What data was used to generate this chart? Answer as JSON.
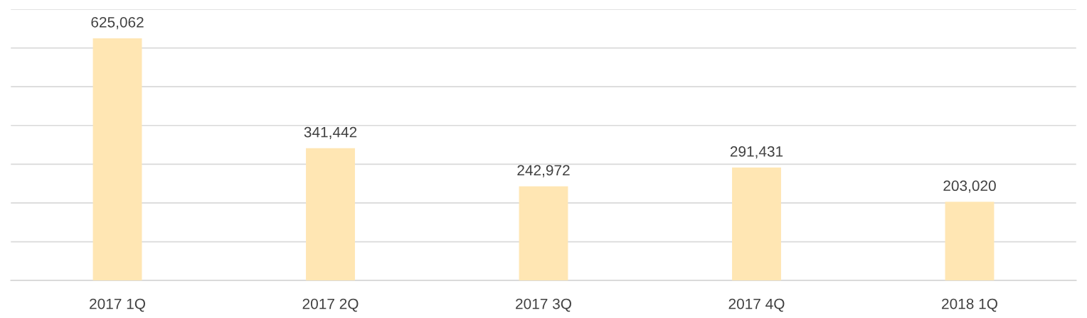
{
  "chart_data": {
    "type": "bar",
    "categories": [
      "2017 1Q",
      "2017 2Q",
      "2017 3Q",
      "2017 4Q",
      "2018 1Q"
    ],
    "values": [
      625062,
      341442,
      242972,
      291431,
      203020
    ],
    "value_labels": [
      "625,062",
      "341,442",
      "242,972",
      "291,431",
      "203,020"
    ],
    "color": "#ffe6b3",
    "ylim": [
      0,
      700000
    ],
    "yticks": [
      {
        "value": 0,
        "label": null
      },
      {
        "value": 100000,
        "label": null
      },
      {
        "value": 200000,
        "label": null
      },
      {
        "value": 300000,
        "label": null
      },
      {
        "value": 400000,
        "label": null
      },
      {
        "value": 500000,
        "label": null
      },
      {
        "value": 600000,
        "label": null
      },
      {
        "value": 700000,
        "label": null
      }
    ],
    "grid": "y",
    "tick_labels": "x"
  }
}
